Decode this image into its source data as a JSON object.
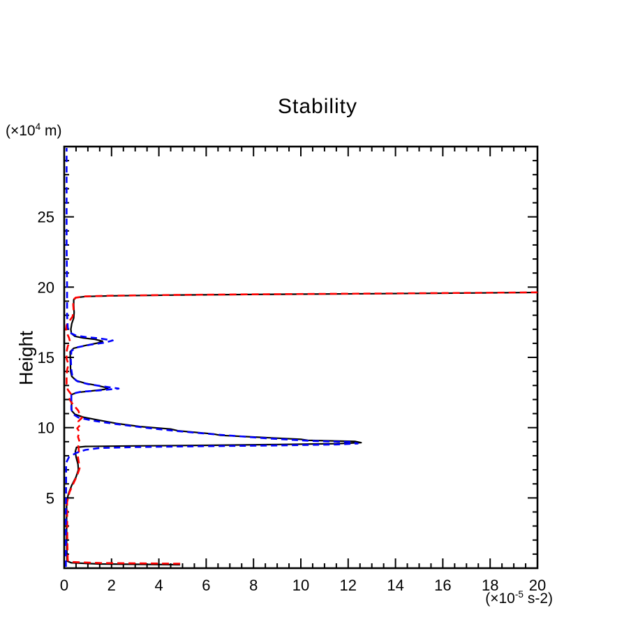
{
  "figure": {
    "title": "Stability",
    "y_axis_name": "Height",
    "y_unit": {
      "prefix": "(×10",
      "sup": "4",
      "suffix": " m)"
    },
    "x_unit": {
      "prefix": "(×10",
      "sup": "-5",
      "suffix": " s-2)"
    }
  },
  "chart_data": {
    "type": "line",
    "title": "Stability",
    "xlabel": "(×10^-5 s-2)",
    "ylabel": "Height (×10^4 m)",
    "xlim": [
      0,
      20
    ],
    "ylim": [
      0,
      30
    ],
    "grid": false,
    "legend": "none",
    "x_major_ticks": [
      0,
      2,
      4,
      6,
      8,
      10,
      12,
      14,
      16,
      18,
      20
    ],
    "x_major_labels": [
      "0",
      "2",
      "4",
      "6",
      "8",
      "10",
      "12",
      "14",
      "16",
      "18",
      "20"
    ],
    "x_minor_step": 0.5,
    "y_major_ticks": [
      5,
      10,
      15,
      20,
      25
    ],
    "y_major_labels": [
      "5",
      "10",
      "15",
      "20",
      "25"
    ],
    "y_minor_step": 1,
    "axis_color": "#000000",
    "series": [
      {
        "name": "black-solid-profile",
        "color": "#000000",
        "dash": null,
        "width": 2.2,
        "points": [
          [
            4.9,
            0.25
          ],
          [
            1.5,
            0.3
          ],
          [
            0.3,
            0.38
          ],
          [
            0.12,
            0.5
          ],
          [
            0.1,
            2.0
          ],
          [
            0.1,
            4.7
          ],
          [
            0.18,
            5.3
          ],
          [
            0.32,
            5.9
          ],
          [
            0.5,
            6.5
          ],
          [
            0.6,
            7.0
          ],
          [
            0.58,
            7.4
          ],
          [
            0.5,
            7.9
          ],
          [
            0.47,
            8.3
          ],
          [
            0.52,
            8.6
          ],
          [
            0.9,
            8.66
          ],
          [
            3.0,
            8.7
          ],
          [
            6.0,
            8.74
          ],
          [
            9.0,
            8.8
          ],
          [
            11.5,
            8.86
          ],
          [
            12.55,
            8.93
          ],
          [
            12.3,
            9.02
          ],
          [
            10.3,
            9.1
          ],
          [
            10.0,
            9.17
          ],
          [
            8.2,
            9.32
          ],
          [
            6.6,
            9.45
          ],
          [
            6.3,
            9.55
          ],
          [
            4.8,
            9.78
          ],
          [
            4.5,
            9.9
          ],
          [
            3.2,
            10.08
          ],
          [
            2.2,
            10.3
          ],
          [
            1.4,
            10.55
          ],
          [
            0.8,
            10.75
          ],
          [
            0.45,
            10.95
          ],
          [
            0.32,
            11.2
          ],
          [
            0.3,
            12.35
          ],
          [
            0.55,
            12.5
          ],
          [
            1.2,
            12.62
          ],
          [
            1.7,
            12.72
          ],
          [
            1.85,
            12.82
          ],
          [
            1.4,
            13.0
          ],
          [
            0.9,
            13.15
          ],
          [
            0.5,
            13.35
          ],
          [
            0.32,
            13.65
          ],
          [
            0.27,
            14.0
          ],
          [
            0.25,
            15.4
          ],
          [
            0.4,
            15.65
          ],
          [
            0.9,
            15.85
          ],
          [
            1.4,
            16.02
          ],
          [
            1.62,
            16.15
          ],
          [
            1.3,
            16.28
          ],
          [
            0.8,
            16.38
          ],
          [
            0.45,
            16.5
          ],
          [
            0.3,
            16.7
          ],
          [
            0.28,
            17.0
          ],
          [
            0.32,
            17.4
          ],
          [
            0.4,
            17.8
          ],
          [
            0.42,
            18.2
          ],
          [
            0.4,
            18.7
          ],
          [
            0.4,
            19.1
          ],
          [
            0.5,
            19.25
          ],
          [
            0.9,
            19.33
          ],
          [
            2.0,
            19.38
          ],
          [
            5.0,
            19.44
          ],
          [
            9.0,
            19.49
          ],
          [
            13.0,
            19.53
          ],
          [
            17.0,
            19.58
          ],
          [
            20.0,
            19.62
          ]
        ]
      },
      {
        "name": "red-dashed-profile",
        "color": "#ff0000",
        "dash": "10 6",
        "width": 2.6,
        "points": [
          [
            4.9,
            0.32
          ],
          [
            1.5,
            0.37
          ],
          [
            0.3,
            0.44
          ],
          [
            0.15,
            0.55
          ],
          [
            0.13,
            2.0
          ],
          [
            0.12,
            4.7
          ],
          [
            0.22,
            5.4
          ],
          [
            0.38,
            6.0
          ],
          [
            0.55,
            6.6
          ],
          [
            0.65,
            7.1
          ],
          [
            0.62,
            7.5
          ],
          [
            0.58,
            7.9
          ],
          [
            0.62,
            8.3
          ],
          [
            0.6,
            8.7
          ],
          [
            0.65,
            9.0
          ],
          [
            0.58,
            9.35
          ],
          [
            0.65,
            9.7
          ],
          [
            0.55,
            9.95
          ],
          [
            0.68,
            10.2
          ],
          [
            0.6,
            10.45
          ],
          [
            0.75,
            10.7
          ],
          [
            0.65,
            10.95
          ],
          [
            0.6,
            11.2
          ],
          [
            0.45,
            11.5
          ],
          [
            0.3,
            11.8
          ],
          [
            0.2,
            12.1
          ],
          [
            0.28,
            12.4
          ],
          [
            0.15,
            12.7
          ],
          [
            0.1,
            13.1
          ],
          [
            0.1,
            13.6
          ],
          [
            0.12,
            14.1
          ],
          [
            0.18,
            14.5
          ],
          [
            0.1,
            14.9
          ],
          [
            0.1,
            15.4
          ],
          [
            0.15,
            15.8
          ],
          [
            0.25,
            16.1
          ],
          [
            0.2,
            16.4
          ],
          [
            0.12,
            16.7
          ],
          [
            0.08,
            17.0
          ],
          [
            0.1,
            17.3
          ],
          [
            0.22,
            17.6
          ],
          [
            0.35,
            17.9
          ],
          [
            0.4,
            18.3
          ],
          [
            0.38,
            18.7
          ],
          [
            0.38,
            19.1
          ],
          [
            0.48,
            19.25
          ],
          [
            0.9,
            19.34
          ],
          [
            2.0,
            19.39
          ],
          [
            5.0,
            19.45
          ],
          [
            9.0,
            19.5
          ],
          [
            13.0,
            19.54
          ],
          [
            17.0,
            19.59
          ],
          [
            20.0,
            19.63
          ]
        ]
      },
      {
        "name": "blue-dashed-profile",
        "color": "#0000ff",
        "dash": "9 6",
        "width": 2.6,
        "points": [
          [
            0.07,
            0.1
          ],
          [
            0.07,
            3.0
          ],
          [
            0.08,
            6.0
          ],
          [
            0.08,
            7.5
          ],
          [
            0.2,
            7.9
          ],
          [
            0.5,
            8.2
          ],
          [
            0.9,
            8.42
          ],
          [
            1.5,
            8.55
          ],
          [
            3.0,
            8.62
          ],
          [
            6.0,
            8.68
          ],
          [
            9.0,
            8.73
          ],
          [
            11.5,
            8.8
          ],
          [
            12.4,
            8.87
          ],
          [
            12.1,
            8.98
          ],
          [
            10.5,
            9.05
          ],
          [
            8.5,
            9.25
          ],
          [
            6.5,
            9.5
          ],
          [
            4.8,
            9.75
          ],
          [
            3.4,
            10.0
          ],
          [
            2.2,
            10.25
          ],
          [
            1.2,
            10.5
          ],
          [
            0.6,
            10.72
          ],
          [
            0.38,
            10.95
          ],
          [
            0.3,
            11.3
          ],
          [
            0.3,
            12.4
          ],
          [
            0.7,
            12.55
          ],
          [
            1.5,
            12.65
          ],
          [
            2.3,
            12.78
          ],
          [
            1.6,
            12.95
          ],
          [
            1.0,
            13.1
          ],
          [
            0.55,
            13.3
          ],
          [
            0.35,
            13.6
          ],
          [
            0.3,
            14.1
          ],
          [
            0.28,
            14.8
          ],
          [
            0.3,
            15.45
          ],
          [
            0.5,
            15.7
          ],
          [
            1.1,
            15.9
          ],
          [
            1.7,
            16.05
          ],
          [
            2.05,
            16.2
          ],
          [
            1.5,
            16.35
          ],
          [
            0.9,
            16.45
          ],
          [
            0.5,
            16.55
          ],
          [
            0.25,
            16.75
          ],
          [
            0.15,
            17.1
          ],
          [
            0.12,
            18.0
          ],
          [
            0.12,
            20.0
          ],
          [
            0.1,
            23.0
          ],
          [
            0.1,
            26.0
          ],
          [
            0.1,
            29.9
          ]
        ]
      }
    ]
  }
}
